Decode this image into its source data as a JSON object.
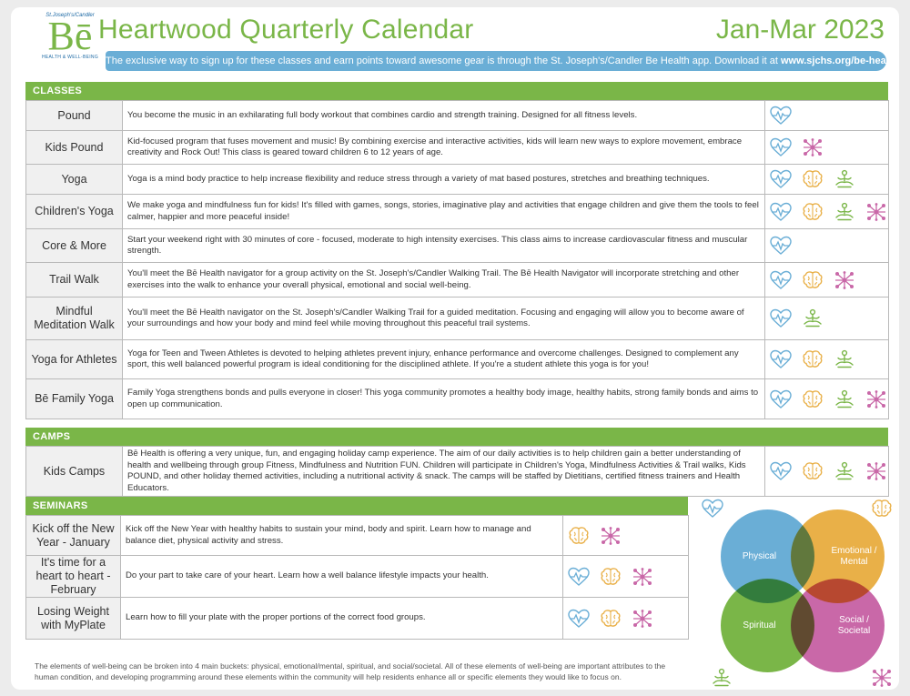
{
  "header": {
    "logo_tagline": "St.Joseph's/Candler",
    "logo_mark": "Bē",
    "logo_subtext": "HEALTH & WELL-BEING",
    "title": "Heartwood Quarterly Calendar",
    "dates": "Jan-Mar 2023",
    "banner_text": "The exclusive way to sign up for these classes and earn points toward awesome gear is through the St. Joseph's/Candler Be Health app. Download it at",
    "banner_url": "www.sjchs.org/be-health."
  },
  "colors": {
    "physical": "#6aaed6",
    "emotional": "#e9b048",
    "spiritual": "#7ab648",
    "social": "#c968a8"
  },
  "classes": {
    "heading": "CLASSES",
    "rows": [
      {
        "name": "Pound",
        "desc": "You become the music in an exhilarating full body workout that combines cardio and strength training. Designed for all fitness levels.",
        "icons": [
          "physical"
        ]
      },
      {
        "name": "Kids Pound",
        "desc": "Kid-focused program that fuses movement and music! By combining exercise and interactive activities, kids will learn new ways to explore movement, embrace creativity and Rock Out!  This class is geared toward children 6 to 12 years of age.",
        "icons": [
          "physical",
          "social"
        ]
      },
      {
        "name": "Yoga",
        "desc": "Yoga is a mind body practice to help increase flexibility and reduce stress through a variety of mat based postures, stretches and breathing techniques.",
        "icons": [
          "physical",
          "emotional",
          "spiritual"
        ]
      },
      {
        "name": "Children's Yoga",
        "desc": "We make yoga and mindfulness fun for kids! It's filled with games, songs, stories, imaginative play and activities that engage children and give them the tools to feel calmer, happier and more peaceful inside!",
        "icons": [
          "physical",
          "emotional",
          "spiritual",
          "social"
        ]
      },
      {
        "name": "Core & More",
        "desc": "Start your weekend right with 30 minutes of core - focused, moderate to high intensity exercises.  This class aims to increase cardiovascular fitness and muscular strength.",
        "icons": [
          "physical"
        ]
      },
      {
        "name": "Trail Walk",
        "desc": "You'll meet the Bē Health navigator for a group activity on the St. Joseph's/Candler Walking Trail.  The Bē Health Navigator will incorporate stretching and other exercises into the walk to enhance your overall physical, emotional and social well-being.",
        "icons": [
          "physical",
          "emotional",
          "social"
        ]
      },
      {
        "name": "Mindful Meditation Walk",
        "desc": "You'll meet the Bē Health navigator on the St. Joseph's/Candler Walking Trail for a guided meditation. Focusing and engaging will allow you to become aware of your surroundings and how your body and mind feel while moving throughout this peaceful trail systems.",
        "icons": [
          "physical",
          "spiritual"
        ]
      },
      {
        "name": "Yoga for Athletes",
        "desc": "Yoga for Teen and Tween Athletes is devoted to helping athletes prevent injury, enhance performance and overcome challenges. Designed to complement any sport, this well balanced powerful program is ideal conditioning for the disciplined athlete.  If you're a student athlete this yoga is for you!",
        "icons": [
          "physical",
          "emotional",
          "spiritual"
        ]
      },
      {
        "name": "Bē Family Yoga",
        "desc": "Family Yoga strengthens bonds and pulls everyone in closer! This yoga community promotes a healthy body image, healthy habits, strong family bonds and aims to open up communication.",
        "icons": [
          "physical",
          "emotional",
          "spiritual",
          "social"
        ]
      }
    ]
  },
  "camps": {
    "heading": "CAMPS",
    "rows": [
      {
        "name": "Kids Camps",
        "desc": "Bē Health is offering a very unique, fun, and engaging holiday camp experience. The aim of our daily activities is to help children gain a better understanding of health and wellbeing through group Fitness, Mindfulness and Nutrition FUN. Children will participate in Children's Yoga, Mindfulness Activities & Trail walks, Kids POUND, and other holiday themed activities, including a nutritional activity & snack. The camps will be staffed by Dietitians, certified fitness trainers and Health Educators.",
        "icons": [
          "physical",
          "emotional",
          "spiritual",
          "social"
        ]
      }
    ]
  },
  "seminars": {
    "heading": "SEMINARS",
    "rows": [
      {
        "name": "Kick off the New Year - January",
        "desc": "Kick off the New Year with healthy habits to sustain your mind, body and spirit. Learn how to manage and balance diet, physical activity and stress.",
        "icons": [
          "emotional",
          "social"
        ]
      },
      {
        "name": "It's time for a heart to heart - February",
        "desc": "Do your part to take care of your heart. Learn how a well balance lifestyle impacts your health.",
        "icons": [
          "physical",
          "emotional",
          "social"
        ]
      },
      {
        "name": "Losing Weight with MyPlate",
        "desc": "Learn how to fill your plate with the proper portions of the correct food groups.",
        "icons": [
          "physical",
          "emotional",
          "social"
        ]
      }
    ]
  },
  "venn": {
    "physical": "Physical",
    "emotional_line1": "Emotional /",
    "emotional_line2": "Mental",
    "spiritual": "Spiritual",
    "social_line1": "Social /",
    "social_line2": "Societal"
  },
  "footer": "The elements of well-being can be broken into 4 main buckets: physical, emotional/mental, spiritual, and social/societal. All of these elements of well-being are important attributes to the human condition, and developing programming around these elements within the community will help residents enhance all or specific elements they would like to focus on."
}
